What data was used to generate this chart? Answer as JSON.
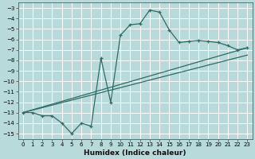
{
  "xlabel": "Humidex (Indice chaleur)",
  "bg_color": "#b8dada",
  "grid_color": "#ffffff",
  "line_color": "#2e6b65",
  "xlim": [
    -0.5,
    23.5
  ],
  "ylim": [
    -15.5,
    -2.5
  ],
  "yticks": [
    -15,
    -14,
    -13,
    -12,
    -11,
    -10,
    -9,
    -8,
    -7,
    -6,
    -5,
    -4,
    -3
  ],
  "xticks": [
    0,
    1,
    2,
    3,
    4,
    5,
    6,
    7,
    8,
    9,
    10,
    11,
    12,
    13,
    14,
    15,
    16,
    17,
    18,
    19,
    20,
    21,
    22,
    23
  ],
  "line1_x": [
    0,
    1,
    2,
    3,
    4,
    5,
    6,
    7,
    8,
    9,
    10,
    11,
    12,
    13,
    14,
    15,
    16,
    17,
    18,
    19,
    20,
    21,
    22,
    23
  ],
  "line1_y": [
    -13.0,
    -13.0,
    -13.3,
    -13.3,
    -14.0,
    -15.0,
    -14.0,
    -14.3,
    -7.8,
    -12.0,
    -5.6,
    -4.6,
    -4.5,
    -3.2,
    -3.4,
    -5.1,
    -6.3,
    -6.2,
    -6.1,
    -6.2,
    -6.3,
    -6.6,
    -7.0,
    -6.8
  ],
  "line2_x": [
    0,
    23
  ],
  "line2_y": [
    -13.0,
    -6.8
  ],
  "line3_x": [
    0,
    23
  ],
  "line3_y": [
    -13.0,
    -7.5
  ]
}
